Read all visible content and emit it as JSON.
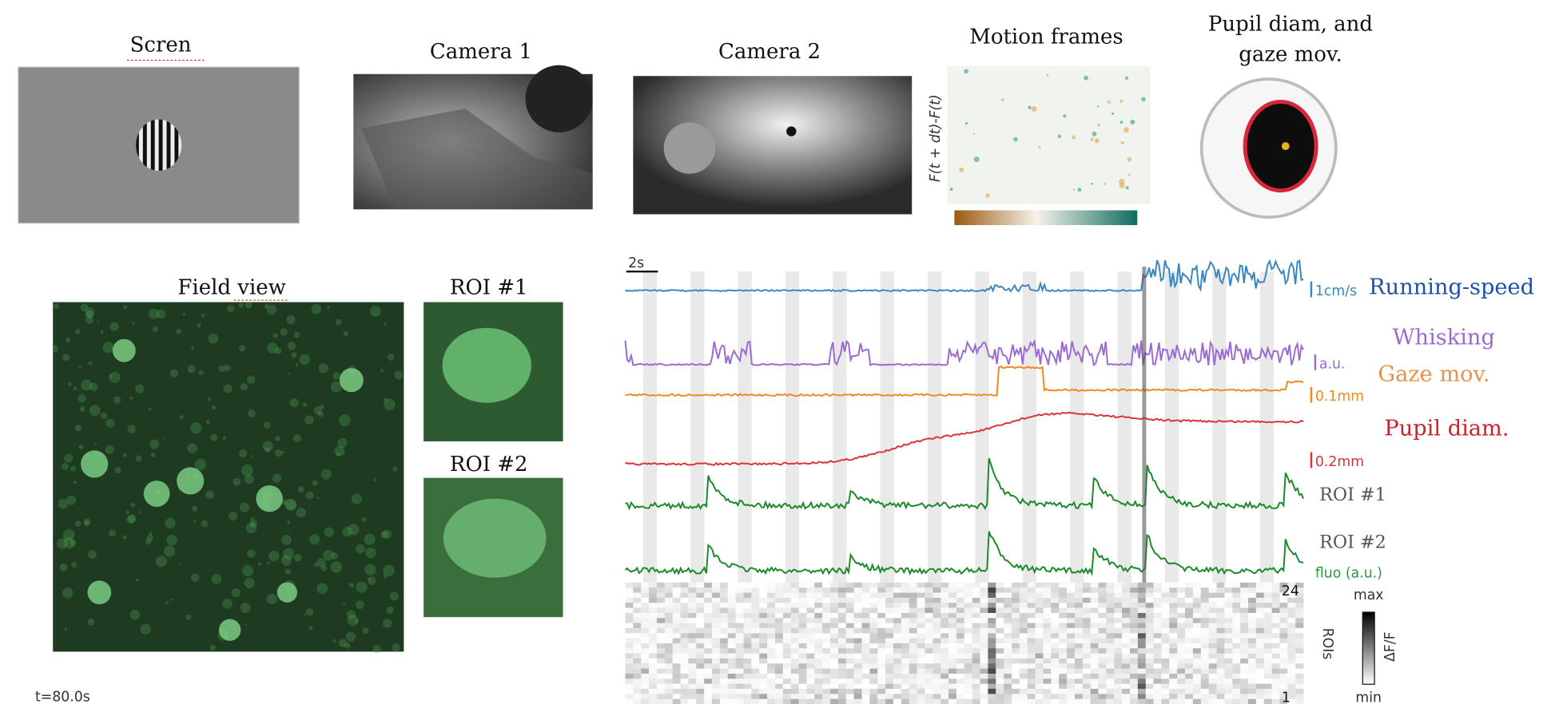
{
  "panels": {
    "screen": "Scren",
    "camera1": "Camera 1",
    "camera2": "Camera 2",
    "motion": "Motion frames",
    "motion_axis": "F(t + dt)-F(t)",
    "pupil_lines": [
      "Pupil diam, and",
      "gaze mov."
    ]
  },
  "imaging": {
    "field_view": "Field view",
    "roi1": "ROI #1",
    "roi2": "ROI #2",
    "time": "t=80.0s"
  },
  "traces": {
    "time_scale": "2s",
    "rows": [
      {
        "name": "Running-speed",
        "scale": "1cm/s",
        "color": "#1f4fa8",
        "trace_color": "#3a86c0"
      },
      {
        "name": "Whisking",
        "scale": "a.u.",
        "color": "#9b6bd0",
        "trace_color": "#9b6bd0"
      },
      {
        "name": "Gaze mov.",
        "scale": "0.1mm",
        "color": "#e8934a",
        "trace_color": "#f08a1c"
      },
      {
        "name": "Pupil diam.",
        "scale": "0.2mm",
        "color": "#d0202a",
        "trace_color": "#d9343a"
      },
      {
        "name": "ROI #1",
        "color": "#555555",
        "trace_color": "#1a8a2a"
      },
      {
        "name": "ROI #2",
        "color": "#555555",
        "trace_color": "#1a8a2a"
      }
    ],
    "fluo_label": "fluo (a.u.)",
    "raster": {
      "top": "24",
      "bottom": "1",
      "axis": "ROIs",
      "max": "max",
      "min": "min",
      "colorbar": "ΔF/F"
    }
  }
}
